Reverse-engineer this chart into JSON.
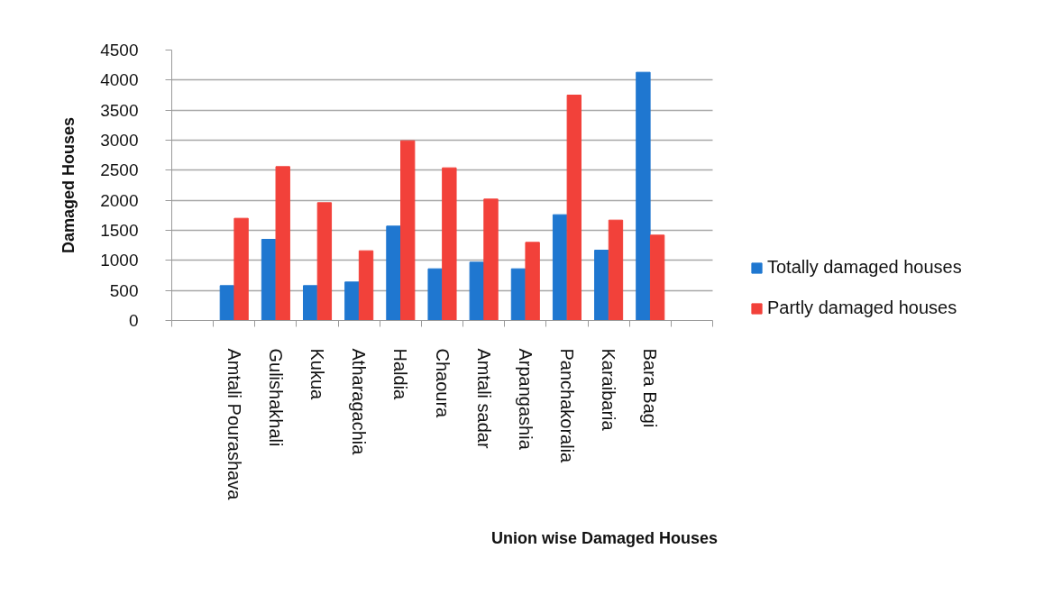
{
  "chart_data": {
    "type": "bar",
    "xlabel": "Union wise Damaged Houses",
    "ylabel": "Damaged Houses",
    "categories": [
      "Amtali Pourashava",
      "Gulishakhali",
      "Kukua",
      "Atharagachia",
      "Haldia",
      "Chaoura",
      "Amtali sadar",
      "Arpangashia",
      "Panchakoralia",
      "Karaibaria",
      "Bara Bagi"
    ],
    "series": [
      {
        "name": "Totally damaged houses",
        "color": "#1f77d0",
        "values": [
          580,
          1350,
          580,
          640,
          1570,
          860,
          970,
          860,
          1760,
          1170,
          4130
        ]
      },
      {
        "name": "Partly damaged houses",
        "color": "#f2413a",
        "values": [
          1700,
          2560,
          1960,
          1160,
          2990,
          2540,
          2020,
          1300,
          3750,
          1670,
          1420
        ]
      }
    ],
    "ylim": [
      0,
      4500
    ],
    "yticks": [
      0,
      500,
      1000,
      1500,
      2000,
      2500,
      3000,
      3500,
      4000,
      4500
    ],
    "grid": "y",
    "legend": "right"
  }
}
